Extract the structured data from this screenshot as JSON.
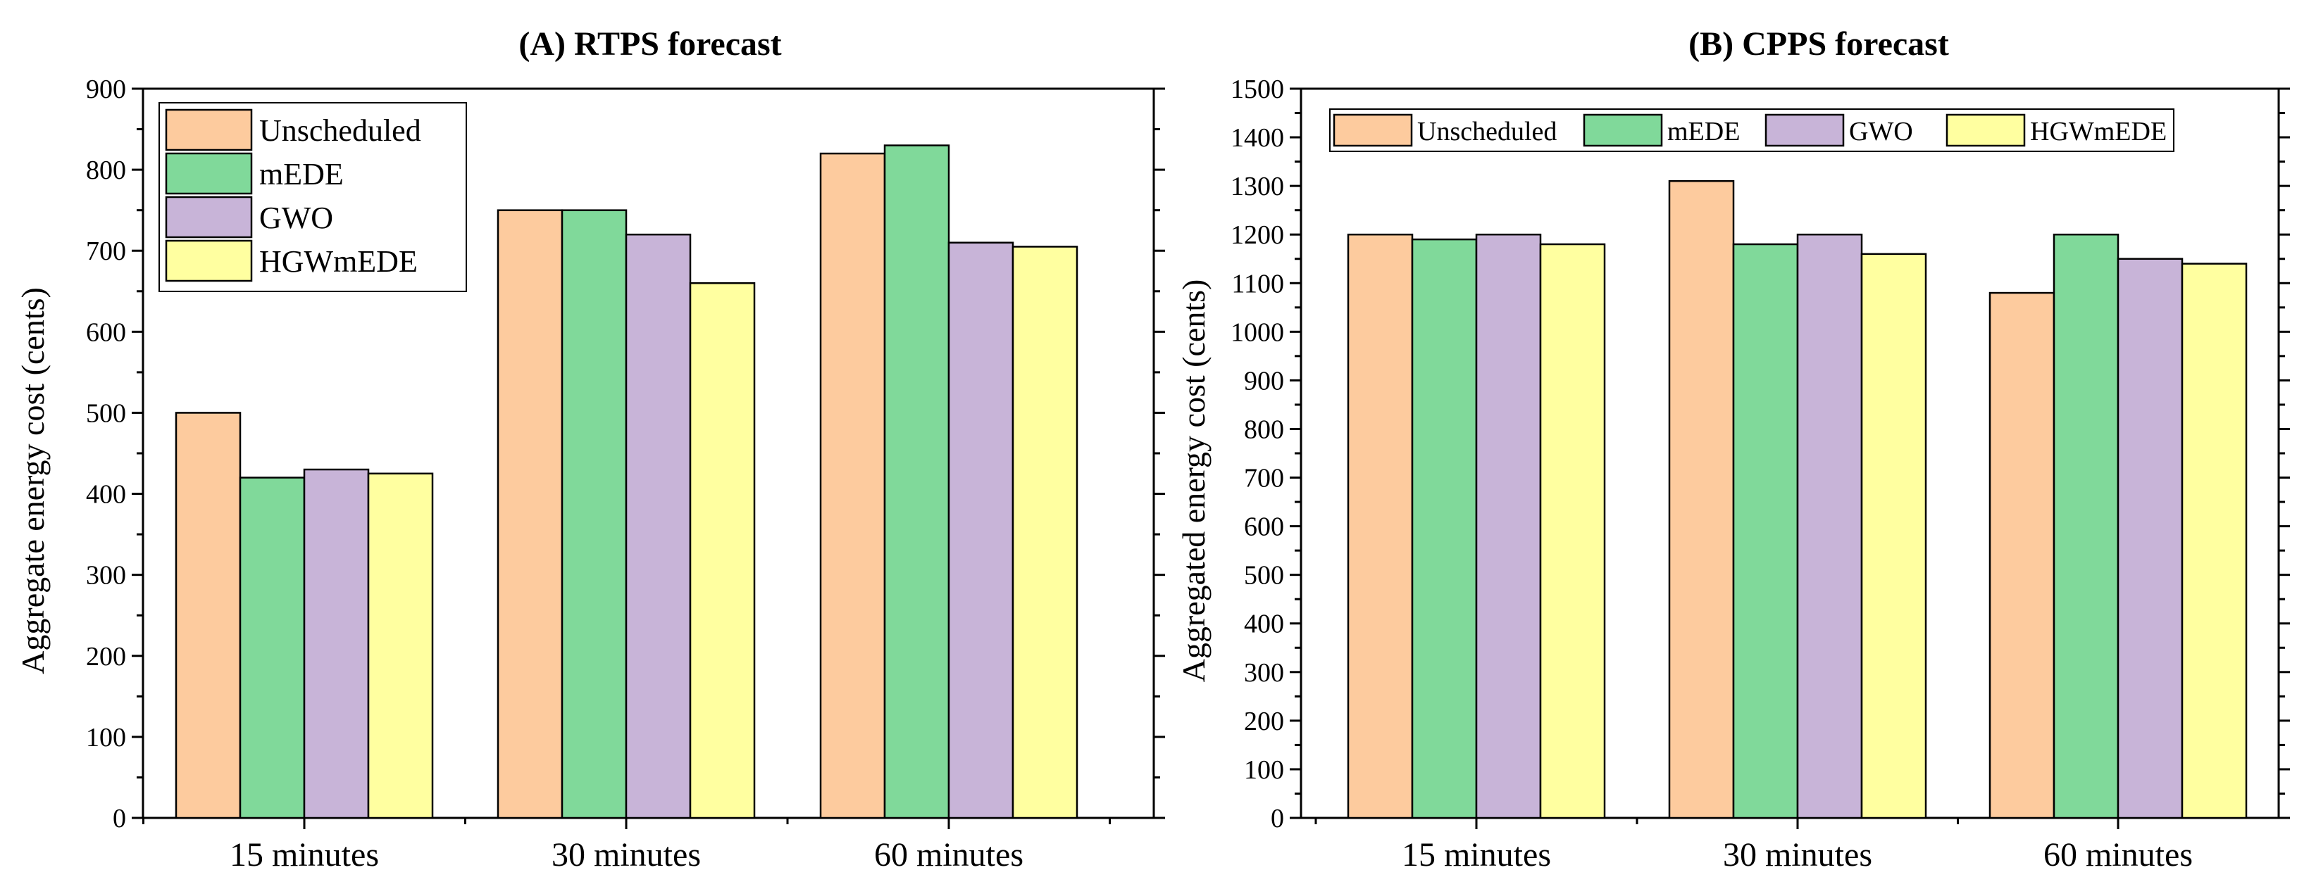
{
  "chart_data": [
    {
      "type": "bar",
      "title": "(A)  RTPS forecast",
      "xlabel": "",
      "ylabel": "Aggregate energy cost (cents)",
      "categories": [
        "15 minutes",
        "30 minutes",
        "60 minutes"
      ],
      "ylim": [
        0,
        900
      ],
      "yticks": [
        0,
        100,
        200,
        300,
        400,
        500,
        600,
        700,
        800,
        900
      ],
      "legend_position": "top-left",
      "series": [
        {
          "name": "Unscheduled",
          "color": "#FDCB9E",
          "values": [
            500,
            750,
            820
          ]
        },
        {
          "name": "mEDE",
          "color": "#80D99A",
          "values": [
            420,
            750,
            830
          ]
        },
        {
          "name": "GWO",
          "color": "#C8B4D8",
          "values": [
            430,
            720,
            710
          ]
        },
        {
          "name": "HGWmEDE",
          "color": "#FFFFA0",
          "values": [
            425,
            660,
            705
          ]
        }
      ]
    },
    {
      "type": "bar",
      "title": "(B)  CPPS forecast",
      "xlabel": "",
      "ylabel": "Aggregated energy cost (cents)",
      "categories": [
        "15 minutes",
        "30 minutes",
        "60 minutes"
      ],
      "ylim": [
        0,
        1500
      ],
      "yticks": [
        0,
        100,
        200,
        300,
        400,
        500,
        600,
        700,
        800,
        900,
        1000,
        1100,
        1200,
        1300,
        1400,
        1500
      ],
      "legend_position": "top (single row)",
      "series": [
        {
          "name": "Unscheduled",
          "color": "#FDCB9E",
          "values": [
            1200,
            1310,
            1080
          ]
        },
        {
          "name": "mEDE",
          "color": "#80D99A",
          "values": [
            1190,
            1180,
            1200
          ]
        },
        {
          "name": "GWO",
          "color": "#C8B4D8",
          "values": [
            1200,
            1200,
            1150
          ]
        },
        {
          "name": "HGWmEDE",
          "color": "#FFFFA0",
          "values": [
            1180,
            1160,
            1140
          ]
        }
      ]
    }
  ]
}
